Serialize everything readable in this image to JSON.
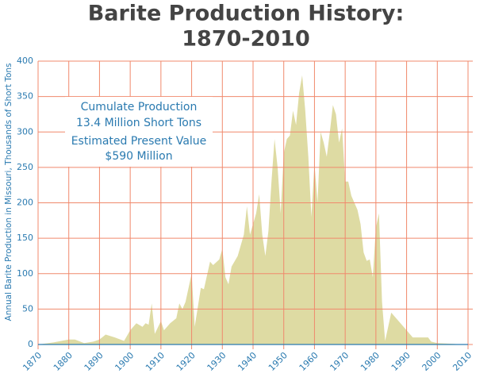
{
  "chart_data": {
    "type": "area",
    "title": [
      "Barite Production History:",
      "1870-2010"
    ],
    "y_label": "Annual Barite Production in Missouri, Thousands of Short Tons",
    "annotations": [
      "Cumulate Production",
      "13.4 Million Short Tons",
      "Estimated Present Value",
      "$590 Million"
    ],
    "x": [
      1870,
      1875,
      1880,
      1882,
      1885,
      1888,
      1890,
      1892,
      1895,
      1898,
      1900,
      1902,
      1904,
      1905,
      1906,
      1907,
      1908,
      1910,
      1911,
      1913,
      1915,
      1916,
      1917,
      1918,
      1920,
      1921,
      1923,
      1924,
      1926,
      1927,
      1929,
      1930,
      1931,
      1932,
      1933,
      1935,
      1937,
      1938,
      1939,
      1941,
      1942,
      1943,
      1944,
      1945,
      1946,
      1947,
      1948,
      1949,
      1950,
      1951,
      1952,
      1953,
      1954,
      1955,
      1956,
      1957,
      1958,
      1959,
      1960,
      1961,
      1962,
      1963,
      1964,
      1965,
      1966,
      1967,
      1968,
      1969,
      1970,
      1971,
      1972,
      1974,
      1975,
      1976,
      1977,
      1978,
      1979,
      1980,
      1981,
      1982,
      1983,
      1985,
      1987,
      1990,
      1992,
      1995,
      1997,
      1998,
      2000,
      2005,
      2008
    ],
    "values": [
      0,
      3,
      7,
      7,
      2,
      4,
      7,
      14,
      10,
      5,
      20,
      30,
      25,
      30,
      28,
      58,
      15,
      33,
      20,
      30,
      37,
      58,
      50,
      60,
      100,
      25,
      80,
      78,
      117,
      112,
      120,
      135,
      95,
      85,
      110,
      125,
      155,
      195,
      155,
      185,
      212,
      155,
      125,
      160,
      230,
      290,
      250,
      185,
      270,
      290,
      295,
      330,
      310,
      355,
      380,
      330,
      265,
      180,
      255,
      200,
      300,
      285,
      265,
      300,
      338,
      325,
      285,
      305,
      230,
      230,
      210,
      190,
      170,
      130,
      118,
      120,
      95,
      165,
      185,
      60,
      5,
      45,
      35,
      20,
      10,
      10,
      10,
      4,
      2,
      1,
      0
    ],
    "color": "#dedba3",
    "grid_color": "#f0896c",
    "xlim": [
      1870,
      2010
    ],
    "xticks": [
      1870,
      1880,
      1890,
      1900,
      1910,
      1920,
      1930,
      1940,
      1950,
      1960,
      1970,
      1980,
      1990,
      2000,
      2010
    ],
    "ylim": [
      0,
      400
    ],
    "yticks": [
      0,
      50,
      100,
      150,
      200,
      250,
      300,
      350,
      400
    ],
    "grid": true
  }
}
